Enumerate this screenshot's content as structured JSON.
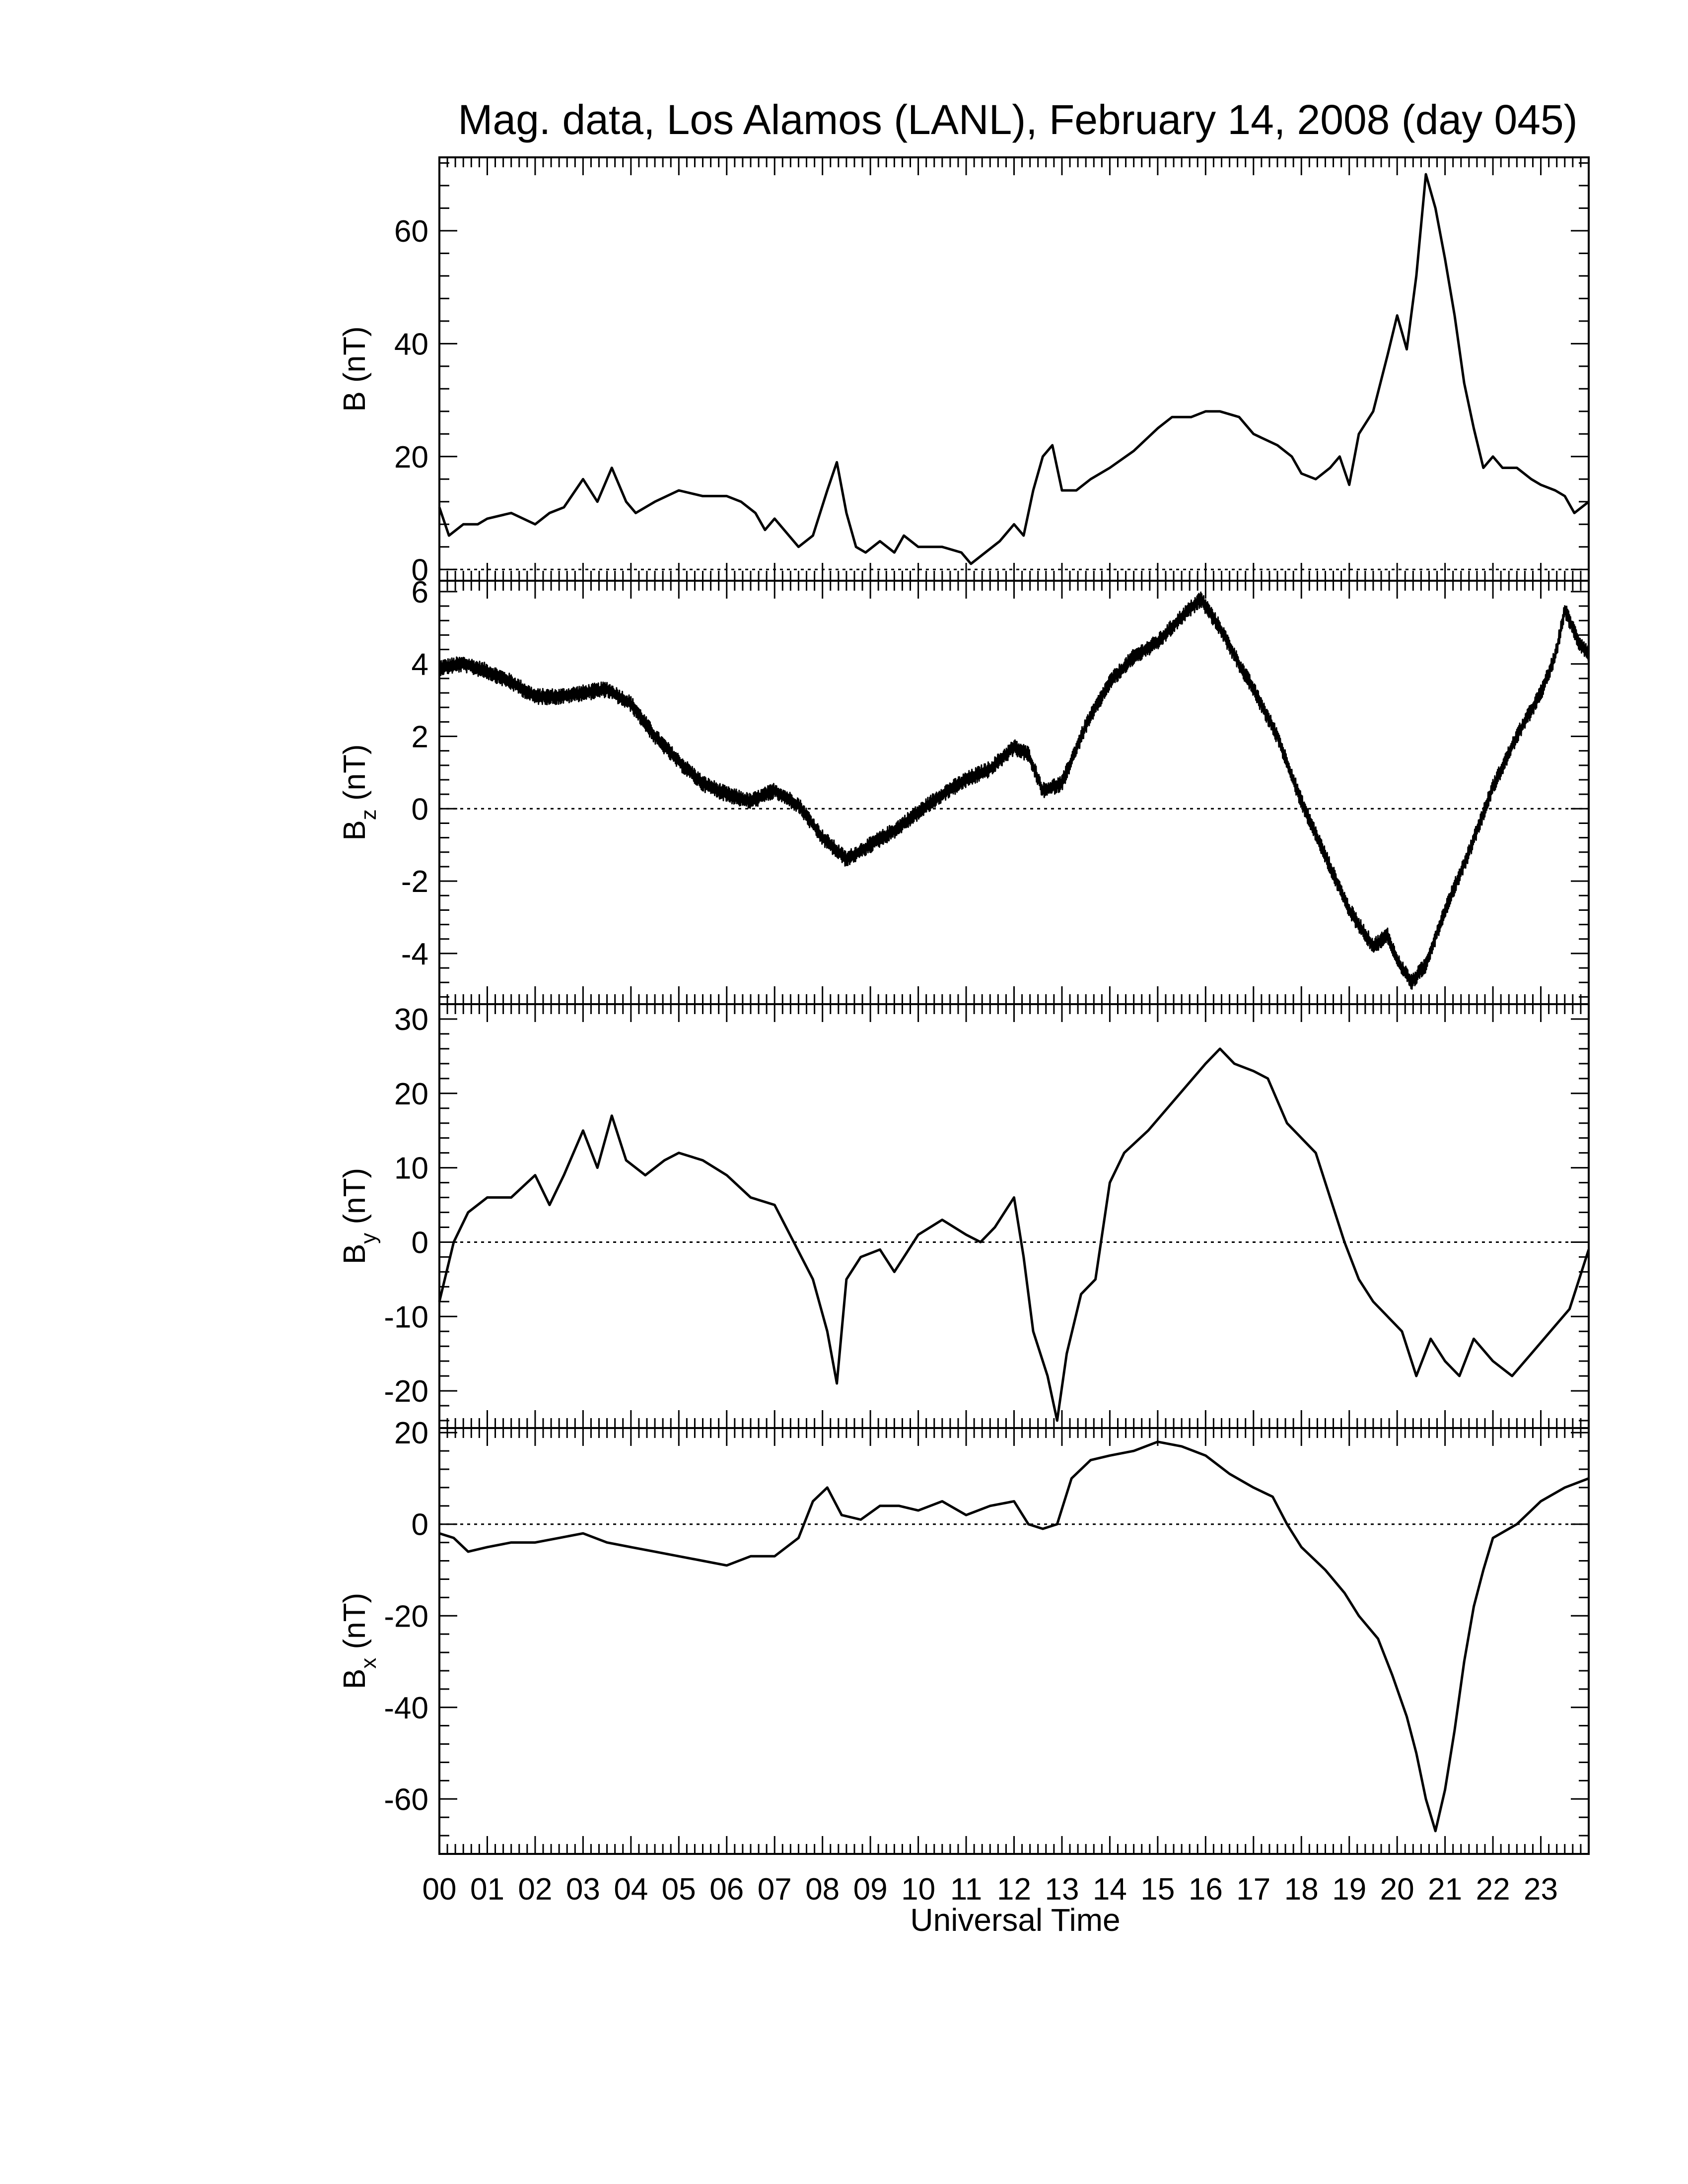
{
  "figure": {
    "title": "Mag. data, Los Alamos (LANL), February 14, 2008 (day 045)",
    "xlabel": "Universal Time",
    "line_color": "#000000",
    "zero_line_color": "#000000"
  },
  "chart_data": [
    {
      "type": "line",
      "panel": "B",
      "ylabel": "B (nT)",
      "ylabel_main": "B",
      "ylabel_sub": "",
      "ylabel_unit": "(nT)",
      "xlim": [
        0,
        24
      ],
      "ylim": [
        -2,
        73
      ],
      "yticks": [
        0,
        20,
        40,
        60
      ],
      "zero_line": true,
      "series": [
        {
          "values": [
            [
              0,
              11
            ],
            [
              0.2,
              6
            ],
            [
              0.5,
              8
            ],
            [
              0.8,
              8
            ],
            [
              1,
              9
            ],
            [
              1.5,
              10
            ],
            [
              2,
              8
            ],
            [
              2.3,
              10
            ],
            [
              2.6,
              11
            ],
            [
              3,
              16
            ],
            [
              3.3,
              12
            ],
            [
              3.6,
              18
            ],
            [
              3.9,
              12
            ],
            [
              4.1,
              10
            ],
            [
              4.5,
              12
            ],
            [
              5,
              14
            ],
            [
              5.5,
              13
            ],
            [
              6,
              13
            ],
            [
              6.3,
              12
            ],
            [
              6.6,
              10
            ],
            [
              6.8,
              7
            ],
            [
              7,
              9
            ],
            [
              7.3,
              6
            ],
            [
              7.5,
              4
            ],
            [
              7.8,
              6
            ],
            [
              8.1,
              14
            ],
            [
              8.3,
              19
            ],
            [
              8.5,
              10
            ],
            [
              8.7,
              4
            ],
            [
              8.9,
              3
            ],
            [
              9.2,
              5
            ],
            [
              9.5,
              3
            ],
            [
              9.7,
              6
            ],
            [
              10,
              4
            ],
            [
              10.5,
              4
            ],
            [
              10.9,
              3
            ],
            [
              11.1,
              1
            ],
            [
              11.4,
              3
            ],
            [
              11.7,
              5
            ],
            [
              12,
              8
            ],
            [
              12.2,
              6
            ],
            [
              12.4,
              14
            ],
            [
              12.6,
              20
            ],
            [
              12.8,
              22
            ],
            [
              13,
              14
            ],
            [
              13.3,
              14
            ],
            [
              13.6,
              16
            ],
            [
              14,
              18
            ],
            [
              14.5,
              21
            ],
            [
              15,
              25
            ],
            [
              15.3,
              27
            ],
            [
              15.7,
              27
            ],
            [
              16,
              28
            ],
            [
              16.3,
              28
            ],
            [
              16.7,
              27
            ],
            [
              17,
              24
            ],
            [
              17.5,
              22
            ],
            [
              17.8,
              20
            ],
            [
              18,
              17
            ],
            [
              18.3,
              16
            ],
            [
              18.6,
              18
            ],
            [
              18.8,
              20
            ],
            [
              19,
              15
            ],
            [
              19.2,
              24
            ],
            [
              19.5,
              28
            ],
            [
              19.8,
              38
            ],
            [
              20,
              45
            ],
            [
              20.2,
              39
            ],
            [
              20.4,
              52
            ],
            [
              20.6,
              70
            ],
            [
              20.8,
              64
            ],
            [
              21,
              55
            ],
            [
              21.2,
              45
            ],
            [
              21.4,
              33
            ],
            [
              21.6,
              25
            ],
            [
              21.8,
              18
            ],
            [
              22,
              20
            ],
            [
              22.2,
              18
            ],
            [
              22.5,
              18
            ],
            [
              22.8,
              16
            ],
            [
              23,
              15
            ],
            [
              23.3,
              14
            ],
            [
              23.5,
              13
            ],
            [
              23.7,
              10
            ],
            [
              24,
              12
            ]
          ]
        }
      ]
    },
    {
      "type": "line",
      "panel": "Bz",
      "ylabel": "Bz (nT)",
      "ylabel_main": "B",
      "ylabel_sub": "z",
      "ylabel_unit": "(nT)",
      "xlim": [
        0,
        24
      ],
      "ylim": [
        -5.4,
        6.3
      ],
      "yticks": [
        -4,
        -2,
        0,
        2,
        4,
        6
      ],
      "zero_line": true,
      "noise_band": 0.22,
      "series": [
        {
          "values": [
            [
              0,
              3.9
            ],
            [
              0.5,
              4.0
            ],
            [
              1,
              3.8
            ],
            [
              1.5,
              3.5
            ],
            [
              2,
              3.1
            ],
            [
              2.5,
              3.1
            ],
            [
              3,
              3.2
            ],
            [
              3.5,
              3.3
            ],
            [
              4,
              2.9
            ],
            [
              4.5,
              2.0
            ],
            [
              5,
              1.3
            ],
            [
              5.5,
              0.7
            ],
            [
              6,
              0.4
            ],
            [
              6.5,
              0.2
            ],
            [
              7,
              0.5
            ],
            [
              7.5,
              0.1
            ],
            [
              8,
              -0.8
            ],
            [
              8.5,
              -1.4
            ],
            [
              9,
              -1.0
            ],
            [
              9.5,
              -0.6
            ],
            [
              10,
              -0.1
            ],
            [
              10.5,
              0.4
            ],
            [
              11,
              0.8
            ],
            [
              11.5,
              1.1
            ],
            [
              12,
              1.7
            ],
            [
              12.3,
              1.5
            ],
            [
              12.6,
              0.5
            ],
            [
              13,
              0.7
            ],
            [
              13.5,
              2.3
            ],
            [
              14,
              3.5
            ],
            [
              14.5,
              4.2
            ],
            [
              15,
              4.6
            ],
            [
              15.5,
              5.3
            ],
            [
              15.9,
              5.8
            ],
            [
              16.3,
              5.0
            ],
            [
              16.7,
              4.0
            ],
            [
              17,
              3.3
            ],
            [
              17.5,
              2.0
            ],
            [
              18,
              0.2
            ],
            [
              18.5,
              -1.3
            ],
            [
              19,
              -2.8
            ],
            [
              19.5,
              -3.8
            ],
            [
              19.8,
              -3.5
            ],
            [
              20,
              -4.2
            ],
            [
              20.3,
              -4.8
            ],
            [
              20.6,
              -4.3
            ],
            [
              21,
              -2.8
            ],
            [
              21.5,
              -1.2
            ],
            [
              22,
              0.6
            ],
            [
              22.5,
              2.0
            ],
            [
              23,
              3.2
            ],
            [
              23.3,
              4.2
            ],
            [
              23.5,
              5.5
            ],
            [
              23.8,
              4.6
            ],
            [
              24,
              4.3
            ]
          ]
        }
      ]
    },
    {
      "type": "line",
      "panel": "By",
      "ylabel": "By (nT)",
      "ylabel_main": "B",
      "ylabel_sub": "y",
      "ylabel_unit": "(nT)",
      "xlim": [
        0,
        24
      ],
      "ylim": [
        -25,
        32
      ],
      "yticks": [
        -20,
        -10,
        0,
        10,
        20,
        30
      ],
      "zero_line": true,
      "series": [
        {
          "values": [
            [
              0,
              -8
            ],
            [
              0.3,
              0
            ],
            [
              0.6,
              4
            ],
            [
              1,
              6
            ],
            [
              1.5,
              6
            ],
            [
              2,
              9
            ],
            [
              2.3,
              5
            ],
            [
              2.6,
              9
            ],
            [
              3,
              15
            ],
            [
              3.3,
              10
            ],
            [
              3.6,
              17
            ],
            [
              3.9,
              11
            ],
            [
              4.3,
              9
            ],
            [
              4.7,
              11
            ],
            [
              5,
              12
            ],
            [
              5.5,
              11
            ],
            [
              6,
              9
            ],
            [
              6.5,
              6
            ],
            [
              7,
              5
            ],
            [
              7.4,
              0
            ],
            [
              7.8,
              -5
            ],
            [
              8.1,
              -12
            ],
            [
              8.3,
              -19
            ],
            [
              8.5,
              -5
            ],
            [
              8.8,
              -2
            ],
            [
              9.2,
              -1
            ],
            [
              9.5,
              -4
            ],
            [
              10,
              1
            ],
            [
              10.5,
              3
            ],
            [
              11,
              1
            ],
            [
              11.3,
              0
            ],
            [
              11.6,
              2
            ],
            [
              12,
              6
            ],
            [
              12.2,
              -2
            ],
            [
              12.4,
              -12
            ],
            [
              12.7,
              -18
            ],
            [
              12.9,
              -24
            ],
            [
              13.1,
              -15
            ],
            [
              13.4,
              -7
            ],
            [
              13.7,
              -5
            ],
            [
              14,
              8
            ],
            [
              14.3,
              12
            ],
            [
              14.8,
              15
            ],
            [
              15.2,
              18
            ],
            [
              15.6,
              21
            ],
            [
              16,
              24
            ],
            [
              16.3,
              26
            ],
            [
              16.6,
              24
            ],
            [
              17,
              23
            ],
            [
              17.3,
              22
            ],
            [
              17.7,
              16
            ],
            [
              18,
              14
            ],
            [
              18.3,
              12
            ],
            [
              18.6,
              6
            ],
            [
              18.9,
              0
            ],
            [
              19.2,
              -5
            ],
            [
              19.5,
              -8
            ],
            [
              19.8,
              -10
            ],
            [
              20.1,
              -12
            ],
            [
              20.4,
              -18
            ],
            [
              20.7,
              -13
            ],
            [
              21,
              -16
            ],
            [
              21.3,
              -18
            ],
            [
              21.6,
              -13
            ],
            [
              22,
              -16
            ],
            [
              22.4,
              -18
            ],
            [
              22.8,
              -15
            ],
            [
              23.2,
              -12
            ],
            [
              23.6,
              -9
            ],
            [
              24,
              -1
            ]
          ]
        }
      ]
    },
    {
      "type": "line",
      "panel": "Bx",
      "ylabel": "Bx (nT)",
      "ylabel_main": "B",
      "ylabel_sub": "x",
      "ylabel_unit": "(nT)",
      "xlim": [
        0,
        24
      ],
      "ylim": [
        -72,
        21
      ],
      "yticks": [
        -60,
        -40,
        -20,
        0,
        20
      ],
      "zero_line": true,
      "series": [
        {
          "values": [
            [
              0,
              -2
            ],
            [
              0.3,
              -3
            ],
            [
              0.6,
              -6
            ],
            [
              1,
              -5
            ],
            [
              1.5,
              -4
            ],
            [
              2,
              -4
            ],
            [
              2.5,
              -3
            ],
            [
              3,
              -2
            ],
            [
              3.5,
              -4
            ],
            [
              4,
              -5
            ],
            [
              4.5,
              -6
            ],
            [
              5,
              -7
            ],
            [
              5.5,
              -8
            ],
            [
              6,
              -9
            ],
            [
              6.5,
              -7
            ],
            [
              7,
              -7
            ],
            [
              7.5,
              -3
            ],
            [
              7.8,
              5
            ],
            [
              8.1,
              8
            ],
            [
              8.4,
              2
            ],
            [
              8.8,
              1
            ],
            [
              9.2,
              4
            ],
            [
              9.6,
              4
            ],
            [
              10,
              3
            ],
            [
              10.5,
              5
            ],
            [
              11,
              2
            ],
            [
              11.5,
              4
            ],
            [
              12,
              5
            ],
            [
              12.3,
              0
            ],
            [
              12.6,
              -1
            ],
            [
              12.9,
              0
            ],
            [
              13.2,
              10
            ],
            [
              13.6,
              14
            ],
            [
              14,
              15
            ],
            [
              14.5,
              16
            ],
            [
              15,
              18
            ],
            [
              15.5,
              17
            ],
            [
              16,
              15
            ],
            [
              16.5,
              11
            ],
            [
              17,
              8
            ],
            [
              17.4,
              6
            ],
            [
              17.7,
              0
            ],
            [
              18,
              -5
            ],
            [
              18.5,
              -10
            ],
            [
              18.9,
              -15
            ],
            [
              19.2,
              -20
            ],
            [
              19.6,
              -25
            ],
            [
              19.9,
              -33
            ],
            [
              20.2,
              -42
            ],
            [
              20.4,
              -50
            ],
            [
              20.6,
              -60
            ],
            [
              20.8,
              -67
            ],
            [
              21,
              -58
            ],
            [
              21.2,
              -45
            ],
            [
              21.4,
              -30
            ],
            [
              21.6,
              -18
            ],
            [
              21.8,
              -10
            ],
            [
              22,
              -3
            ],
            [
              22.5,
              0
            ],
            [
              23,
              5
            ],
            [
              23.5,
              8
            ],
            [
              24,
              10
            ]
          ]
        }
      ]
    }
  ]
}
